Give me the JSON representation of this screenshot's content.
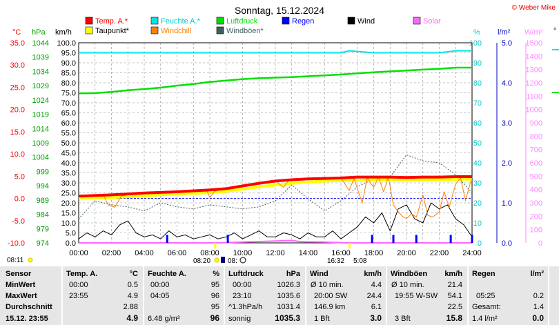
{
  "title": "Sonntag, 15.12.2024",
  "copyright": "© Weber Mike",
  "legend": [
    {
      "label": "Temp. A.*",
      "color": "#ff0000"
    },
    {
      "label": "Feuchte A.*",
      "color": "#00e5e5"
    },
    {
      "label": "Luftdruck",
      "color": "#00e000"
    },
    {
      "label": "Regen",
      "color": "#0000ff"
    },
    {
      "label": "Wind",
      "color": "#000000"
    },
    {
      "label": "Solar",
      "color": "#ff66ff"
    },
    {
      "label": "Taupunkt*",
      "color": "#ffff00"
    },
    {
      "label": "Windchill",
      "color": "#ff8000"
    },
    {
      "label": "Windböen*",
      "color": "#406060"
    }
  ],
  "axes": {
    "temp": {
      "unit": "°C",
      "ticks": [
        "35.0",
        "30.0",
        "25.0",
        "20.0",
        "15.0",
        "10.0",
        "5.0",
        "0.0",
        "-5.0",
        "-10.0"
      ],
      "range": [
        -10,
        35
      ],
      "color": "#ff0000"
    },
    "pressure": {
      "unit": "hPa",
      "ticks": [
        "1044",
        "1039",
        "1034",
        "1029",
        "1024",
        "1019",
        "1014",
        "1009",
        "1004",
        "999",
        "994",
        "989",
        "984",
        "979",
        "974"
      ],
      "range": [
        974,
        1044
      ],
      "color": "#00a000"
    },
    "wind": {
      "unit": "km/h",
      "ticks": [
        "100.0",
        "95.0",
        "90.0",
        "85.0",
        "80.0",
        "75.0",
        "70.0",
        "65.0",
        "60.0",
        "55.0",
        "50.0",
        "45.0",
        "40.0",
        "35.0",
        "30.0",
        "25.0",
        "20.0",
        "15.0",
        "10.0",
        "5.0",
        "0.0"
      ],
      "range": [
        0,
        100
      ],
      "color": "#000000"
    },
    "humidity": {
      "unit": "%",
      "ticks": [
        "100",
        "90",
        "80",
        "70",
        "60",
        "50",
        "40",
        "30",
        "20",
        "10",
        "0"
      ],
      "range": [
        0,
        100
      ],
      "color": "#00c0c0"
    },
    "rain": {
      "unit": "l/m²",
      "ticks": [
        "5.0",
        "4.0",
        "3.0",
        "2.0",
        "1.0",
        "0.0"
      ],
      "range": [
        0,
        5
      ],
      "color": "#0000c0"
    },
    "solar": {
      "unit": "W/m²",
      "ticks": [
        "1500",
        "1400",
        "1300",
        "1200",
        "1100",
        "1000",
        "900",
        "800",
        "700",
        "600",
        "500",
        "400",
        "300",
        "200",
        "100",
        "0"
      ],
      "range": [
        0,
        1500
      ],
      "color": "#ff66ff"
    },
    "time": {
      "ticks": [
        "00:00",
        "02:00",
        "04:00",
        "06:00",
        "08:00",
        "10:00",
        "12:00",
        "14:00",
        "16:00",
        "18:00",
        "20:00",
        "22:00",
        "24:00"
      ],
      "range": [
        0,
        24
      ]
    }
  },
  "time_annotations": {
    "left": "08:11",
    "sunrise": "08:20",
    "sunset": "16:32",
    "moonrise": "08:",
    "moonset": "5:08"
  },
  "chart_data": {
    "type": "line",
    "x_unit": "hours",
    "grid": true,
    "series": [
      {
        "name": "Temp. A.*",
        "axis": "temp",
        "color": "#ff0000",
        "x": [
          0,
          2,
          4,
          6,
          8,
          9,
          10,
          11,
          12,
          13,
          14,
          15,
          16,
          17,
          18,
          19,
          20,
          21,
          22,
          23,
          24
        ],
        "y": [
          0.5,
          0.8,
          1.2,
          1.5,
          1.9,
          2.2,
          2.8,
          3.4,
          3.9,
          4.2,
          4.4,
          4.5,
          4.6,
          4.8,
          4.8,
          4.8,
          4.7,
          4.8,
          4.8,
          4.9,
          4.9
        ]
      },
      {
        "name": "Taupunkt*",
        "axis": "temp",
        "color": "#ffff00",
        "x": [
          0,
          2,
          4,
          6,
          8,
          9,
          10,
          11,
          12,
          13,
          14,
          15,
          16,
          17,
          18,
          19,
          20,
          21,
          22,
          23,
          24
        ],
        "y": [
          0.0,
          0.2,
          0.6,
          1.0,
          1.3,
          1.6,
          2.1,
          2.6,
          3.0,
          3.4,
          3.7,
          3.9,
          4.0,
          4.1,
          4.2,
          4.2,
          4.1,
          4.2,
          4.2,
          4.3,
          4.3
        ]
      },
      {
        "name": "Windchill",
        "axis": "temp",
        "color": "#ff8000",
        "x": [
          0,
          1.5,
          1.8,
          2.2,
          2.6,
          3,
          4,
          6,
          7.8,
          8,
          8.3,
          8.6,
          9,
          10,
          11,
          12,
          12.5,
          12.8,
          13,
          14,
          15,
          16,
          16.5,
          16.8,
          17,
          17.3,
          17.6,
          18,
          18.3,
          18.6,
          18.9,
          19.2,
          19.5,
          19.8,
          20,
          20.3,
          20.6,
          21,
          21.3,
          21.6,
          22,
          22.3,
          22.6,
          23,
          23.3,
          23.6,
          24
        ],
        "y": [
          0.5,
          0.8,
          -1.5,
          -2.0,
          0.5,
          0.8,
          1.2,
          1.5,
          1.9,
          0.2,
          1.6,
          1.9,
          2.2,
          2.8,
          3.4,
          3.9,
          2.5,
          4.0,
          4.2,
          4.4,
          4.5,
          4.6,
          1.8,
          4.5,
          2.2,
          -1.0,
          4.6,
          2.5,
          4.8,
          1.5,
          4.8,
          -1.5,
          -3.0,
          -4.2,
          -4.5,
          -3.5,
          -4.2,
          0.8,
          -3.8,
          -4.2,
          -3.0,
          1.5,
          -2.0,
          3.2,
          4.7,
          -0.5,
          4.9
        ]
      },
      {
        "name": "Feuchte A.*",
        "axis": "humidity",
        "color": "#00e5e5",
        "x": [
          0,
          4,
          5,
          8,
          10,
          12,
          14,
          16,
          16.5,
          18,
          20,
          22,
          23,
          24
        ],
        "y": [
          95,
          95,
          95,
          95,
          95,
          95,
          95,
          95,
          96,
          95,
          95,
          95,
          96,
          96
        ]
      },
      {
        "name": "Luftdruck",
        "axis": "pressure",
        "color": "#00e000",
        "x": [
          0,
          1,
          2,
          3,
          4,
          5,
          6,
          7,
          8,
          9,
          10,
          11,
          12,
          13,
          14,
          15,
          16,
          17,
          18,
          19,
          20,
          21,
          22,
          23,
          24
        ],
        "y": [
          1026.3,
          1026.4,
          1026.8,
          1027.4,
          1027.8,
          1028.3,
          1029.0,
          1029.6,
          1030.3,
          1030.8,
          1031.3,
          1031.6,
          1031.8,
          1032.0,
          1032.3,
          1032.6,
          1032.9,
          1033.3,
          1033.7,
          1034.0,
          1034.3,
          1034.6,
          1034.9,
          1035.3,
          1035.3
        ]
      },
      {
        "name": "Wind",
        "axis": "wind",
        "color": "#000000",
        "x": [
          0,
          0.5,
          1,
          1.5,
          2,
          2.5,
          3,
          3.5,
          4,
          4.5,
          5,
          5.5,
          6,
          6.5,
          7,
          7.5,
          8,
          8.5,
          9,
          9.5,
          10,
          10.5,
          11,
          11.5,
          12,
          12.5,
          13,
          13.5,
          14,
          14.5,
          15,
          15.5,
          16,
          16.5,
          17,
          17.5,
          18,
          18.5,
          19,
          19.5,
          20,
          20.5,
          21,
          21.5,
          22,
          22.5,
          23,
          23.5,
          24
        ],
        "y": [
          2,
          5,
          3,
          6,
          4,
          9,
          11,
          5,
          3,
          4,
          2,
          6,
          3,
          4,
          2,
          3,
          4,
          2,
          3,
          5,
          2,
          4,
          6,
          3,
          3,
          5,
          4,
          2,
          5,
          3,
          3,
          6,
          2,
          5,
          8,
          13,
          10,
          15,
          6,
          17,
          19,
          12,
          10,
          20,
          17,
          19,
          12,
          9,
          3
        ]
      },
      {
        "name": "Windböen*",
        "axis": "wind",
        "color": "#406060",
        "x": [
          0,
          1,
          2,
          3,
          4,
          5,
          6,
          7,
          8,
          9,
          10,
          11,
          12,
          13,
          14,
          15,
          16,
          17,
          18,
          19,
          20,
          21,
          22,
          23,
          24
        ],
        "y": [
          12,
          21,
          19,
          18,
          16,
          20,
          18,
          17,
          19,
          18,
          17,
          18,
          21,
          29,
          22,
          16,
          21,
          28,
          32,
          33,
          44,
          41,
          40,
          34,
          25
        ]
      },
      {
        "name": "Regen",
        "axis": "rain",
        "color": "#0000ff",
        "x": [
          0,
          5.4,
          9.1,
          17.9,
          19.2,
          20.6,
          22.7,
          24
        ],
        "y": [
          0,
          0.2,
          0.2,
          0.2,
          0.2,
          0.2,
          0.2,
          0.2
        ]
      },
      {
        "name": "Solar",
        "axis": "solar",
        "color": "#ff66ff",
        "x": [
          0,
          8.3,
          9,
          10,
          11,
          12,
          12.5,
          13,
          13.5,
          14,
          15,
          16.3,
          24
        ],
        "y": [
          0,
          0,
          2,
          6,
          10,
          14,
          16,
          18,
          10,
          8,
          6,
          0,
          0
        ]
      }
    ]
  },
  "stats": {
    "row_labels": [
      "Sensor",
      "MinWert",
      "MaxWert",
      "Durchschnitt",
      "15.12. 23:55"
    ],
    "temp": {
      "header": "Temp. A.",
      "unit": "°C",
      "rows": [
        [
          "00:00",
          "0.5"
        ],
        [
          "23:55",
          "4.9"
        ],
        [
          "",
          "2.88"
        ],
        [
          "",
          "4.9"
        ]
      ]
    },
    "humidity": {
      "header": "Feuchte A.",
      "unit": "%",
      "rows": [
        [
          "00:00",
          "95"
        ],
        [
          "04:05",
          "96"
        ],
        [
          "",
          "95"
        ],
        [
          "6.48 g/m³",
          "96"
        ]
      ]
    },
    "pressure": {
      "header": "Luftdruck",
      "unit": "hPa",
      "rows": [
        [
          "00:00",
          "1026.3"
        ],
        [
          "23:10",
          "1035.6"
        ],
        [
          "^1.3hPa/h",
          "1031.4"
        ],
        [
          "sonnig",
          "1035.3"
        ]
      ]
    },
    "wind": {
      "header": "Wind",
      "unit": "km/h",
      "rows": [
        [
          "Ø 10 min.",
          "4.4"
        ],
        [
          "20:00    SW",
          "24.4"
        ],
        [
          "146.9 km",
          "6.1"
        ],
        [
          "1 Bft",
          "3.0"
        ]
      ]
    },
    "gusts": {
      "header": "Windböen",
      "unit": "km/h",
      "rows": [
        [
          "Ø 10 min.",
          "21.4"
        ],
        [
          "19:55  W-SW",
          "54.1"
        ],
        [
          "",
          "22.5"
        ],
        [
          "3 Bft",
          "15.8"
        ]
      ]
    },
    "rain": {
      "header": "Regen",
      "unit": "l/m²",
      "rows": [
        [
          "",
          ""
        ],
        [
          "05:25",
          "0.2"
        ],
        [
          "Gesamt:",
          "1.4"
        ],
        [
          "1.4 l/m²",
          "0.0"
        ]
      ]
    }
  }
}
